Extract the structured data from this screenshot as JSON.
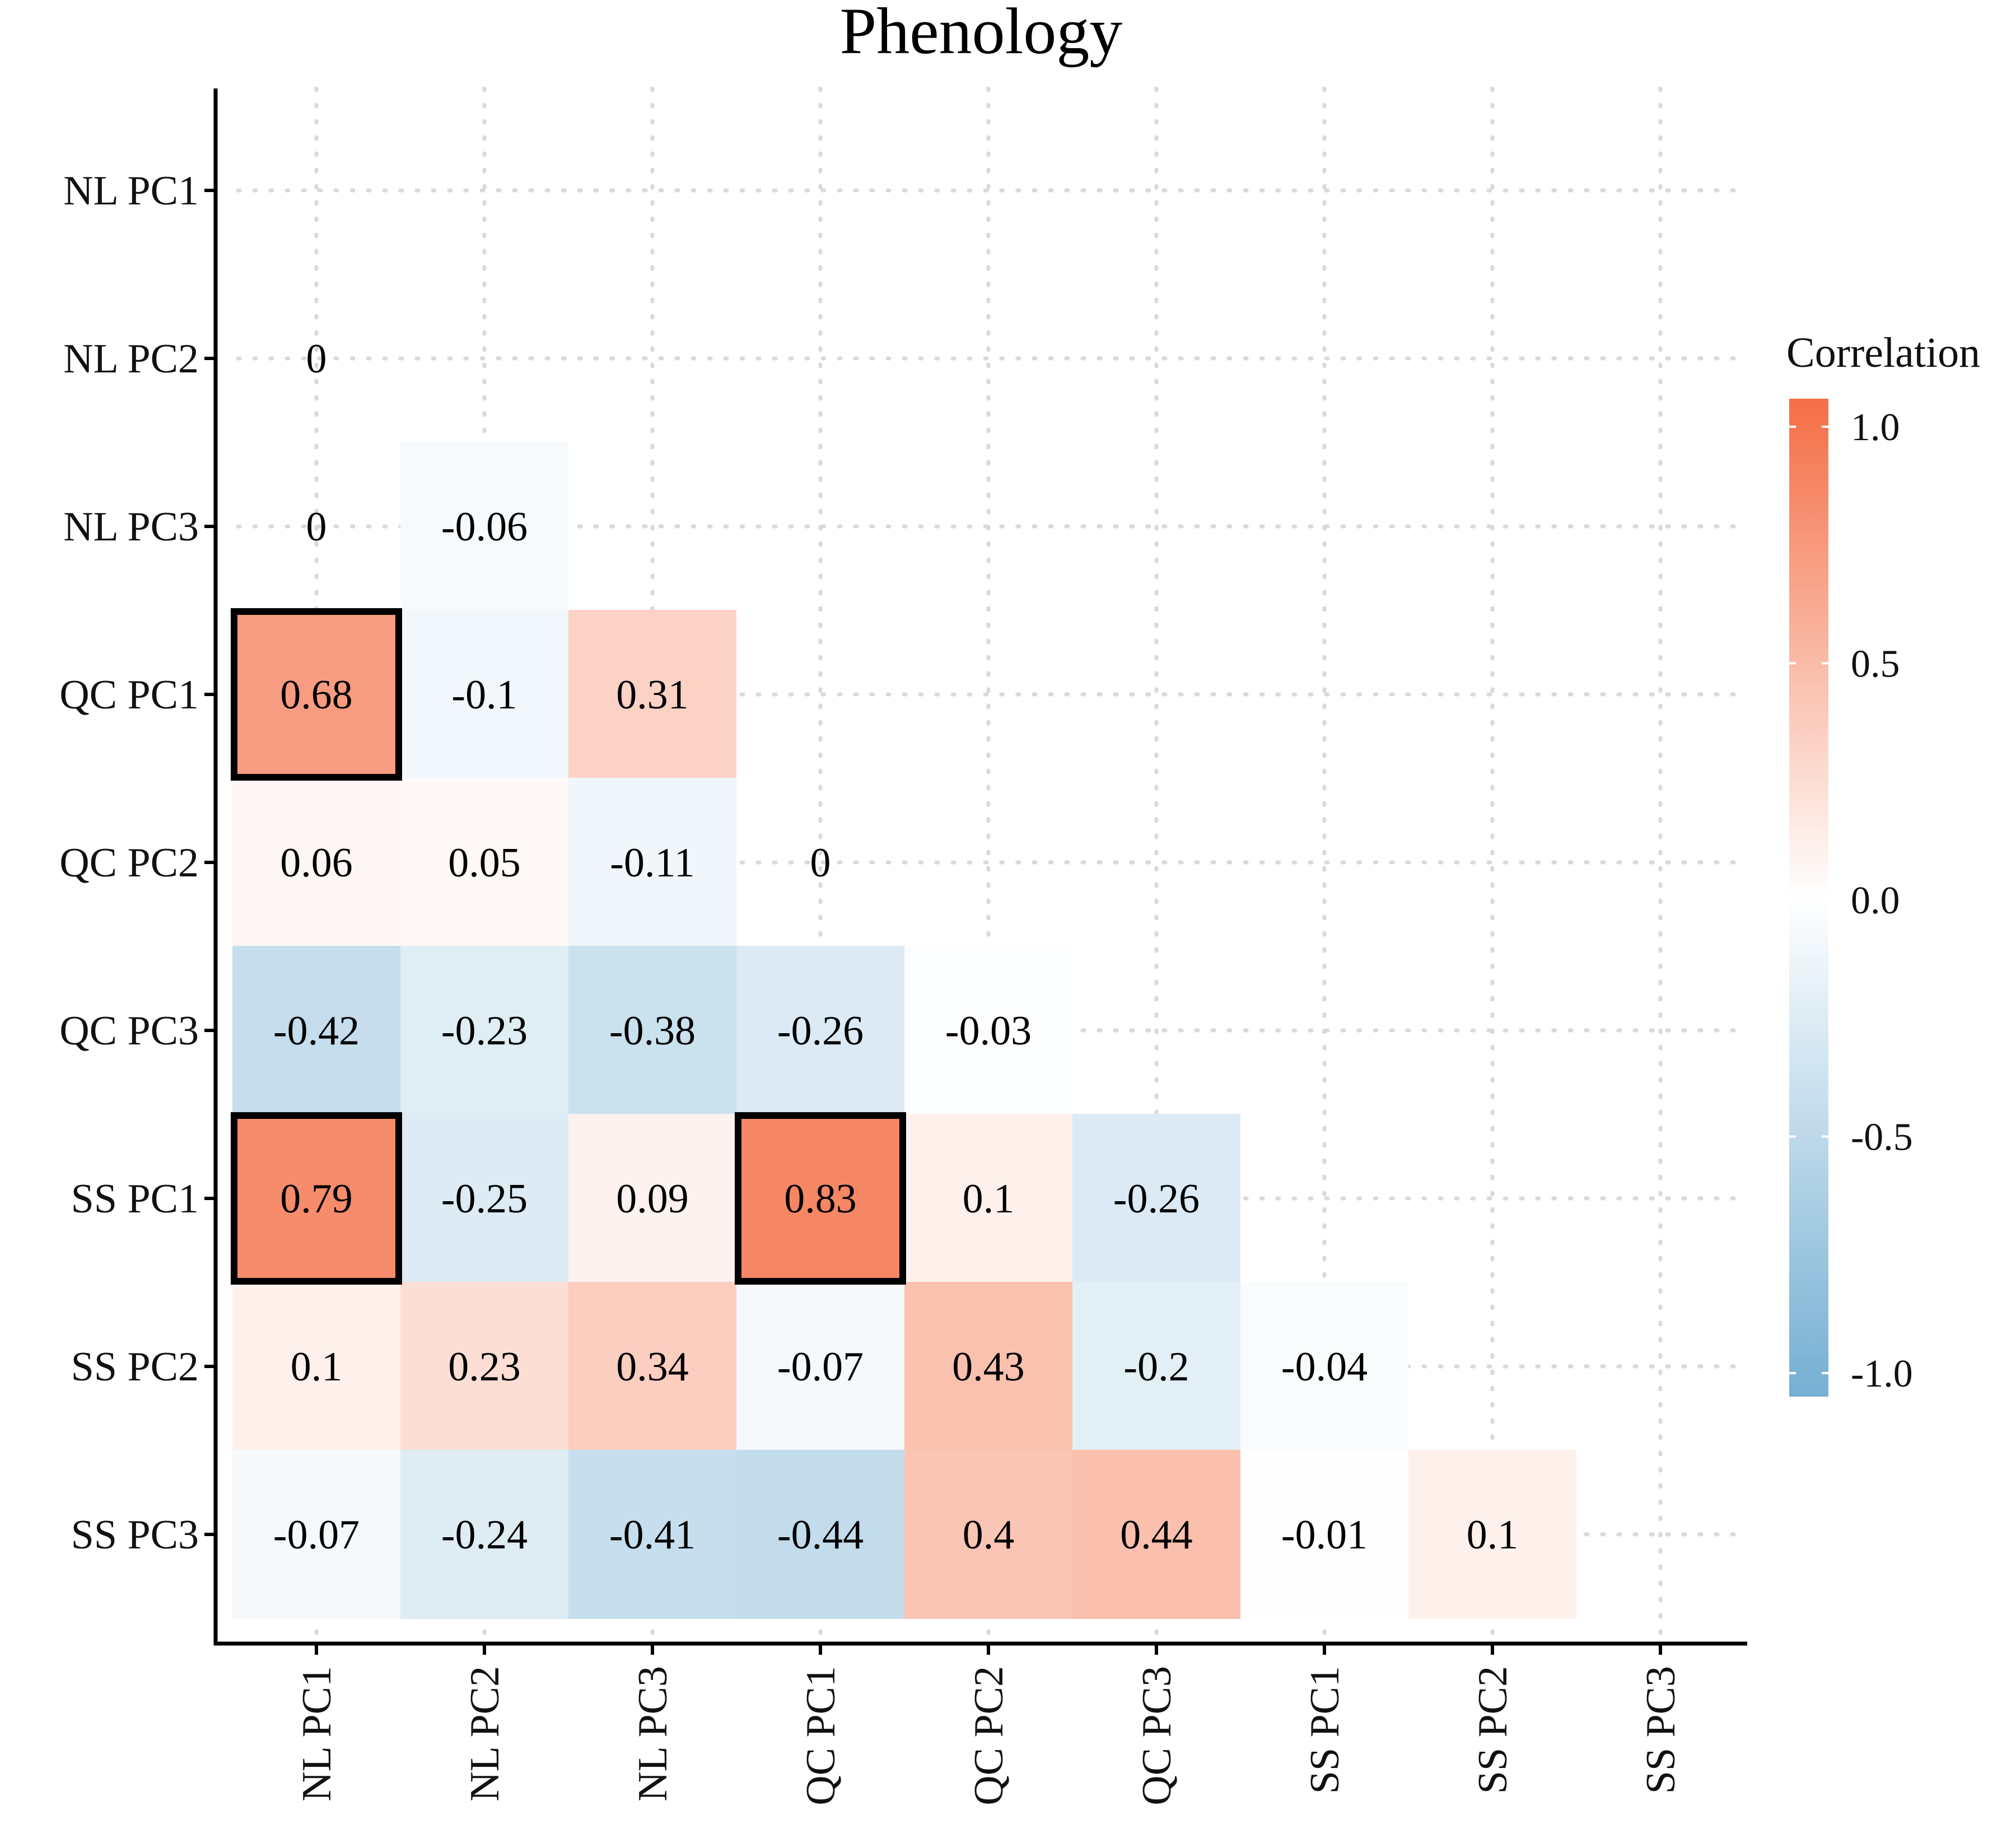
{
  "chart_data": {
    "type": "heatmap",
    "title": "Phenology",
    "xlabel": "",
    "ylabel": "",
    "variables": [
      "NL PC1",
      "NL PC2",
      "NL PC3",
      "QC PC1",
      "QC PC2",
      "QC PC3",
      "SS PC1",
      "SS PC2",
      "SS PC3"
    ],
    "matrix_shape": "lower-triangle",
    "grid": true,
    "cells": [
      {
        "row": "NL PC2",
        "col": "NL PC1",
        "value": 0,
        "label": "0",
        "show_fill": false
      },
      {
        "row": "NL PC3",
        "col": "NL PC1",
        "value": 0,
        "label": "0",
        "show_fill": false
      },
      {
        "row": "NL PC3",
        "col": "NL PC2",
        "value": -0.06,
        "label": "-0.06",
        "show_fill": true
      },
      {
        "row": "QC PC1",
        "col": "NL PC1",
        "value": 0.68,
        "label": "0.68",
        "show_fill": true,
        "highlight": true
      },
      {
        "row": "QC PC1",
        "col": "NL PC2",
        "value": -0.1,
        "label": "-0.1",
        "show_fill": true
      },
      {
        "row": "QC PC1",
        "col": "NL PC3",
        "value": 0.31,
        "label": "0.31",
        "show_fill": true
      },
      {
        "row": "QC PC2",
        "col": "NL PC1",
        "value": 0.06,
        "label": "0.06",
        "show_fill": true
      },
      {
        "row": "QC PC2",
        "col": "NL PC2",
        "value": 0.05,
        "label": "0.05",
        "show_fill": true
      },
      {
        "row": "QC PC2",
        "col": "NL PC3",
        "value": -0.11,
        "label": "-0.11",
        "show_fill": true
      },
      {
        "row": "QC PC2",
        "col": "QC PC1",
        "value": 0,
        "label": "0",
        "show_fill": false
      },
      {
        "row": "QC PC3",
        "col": "NL PC1",
        "value": -0.42,
        "label": "-0.42",
        "show_fill": true
      },
      {
        "row": "QC PC3",
        "col": "NL PC2",
        "value": -0.23,
        "label": "-0.23",
        "show_fill": true
      },
      {
        "row": "QC PC3",
        "col": "NL PC3",
        "value": -0.38,
        "label": "-0.38",
        "show_fill": true
      },
      {
        "row": "QC PC3",
        "col": "QC PC1",
        "value": -0.26,
        "label": "-0.26",
        "show_fill": true
      },
      {
        "row": "QC PC3",
        "col": "QC PC2",
        "value": -0.03,
        "label": "-0.03",
        "show_fill": true
      },
      {
        "row": "SS PC1",
        "col": "NL PC1",
        "value": 0.79,
        "label": "0.79",
        "show_fill": true,
        "highlight": true
      },
      {
        "row": "SS PC1",
        "col": "NL PC2",
        "value": -0.25,
        "label": "-0.25",
        "show_fill": true
      },
      {
        "row": "SS PC1",
        "col": "NL PC3",
        "value": 0.09,
        "label": "0.09",
        "show_fill": true
      },
      {
        "row": "SS PC1",
        "col": "QC PC1",
        "value": 0.83,
        "label": "0.83",
        "show_fill": true,
        "highlight": true
      },
      {
        "row": "SS PC1",
        "col": "QC PC2",
        "value": 0.1,
        "label": "0.1",
        "show_fill": true
      },
      {
        "row": "SS PC1",
        "col": "QC PC3",
        "value": -0.26,
        "label": "-0.26",
        "show_fill": true
      },
      {
        "row": "SS PC2",
        "col": "NL PC1",
        "value": 0.1,
        "label": "0.1",
        "show_fill": true
      },
      {
        "row": "SS PC2",
        "col": "NL PC2",
        "value": 0.23,
        "label": "0.23",
        "show_fill": true
      },
      {
        "row": "SS PC2",
        "col": "NL PC3",
        "value": 0.34,
        "label": "0.34",
        "show_fill": true
      },
      {
        "row": "SS PC2",
        "col": "QC PC1",
        "value": -0.07,
        "label": "-0.07",
        "show_fill": true
      },
      {
        "row": "SS PC2",
        "col": "QC PC2",
        "value": 0.43,
        "label": "0.43",
        "show_fill": true
      },
      {
        "row": "SS PC2",
        "col": "QC PC3",
        "value": -0.2,
        "label": "-0.2",
        "show_fill": true
      },
      {
        "row": "SS PC2",
        "col": "SS PC1",
        "value": -0.04,
        "label": "-0.04",
        "show_fill": true
      },
      {
        "row": "SS PC3",
        "col": "NL PC1",
        "value": -0.07,
        "label": "-0.07",
        "show_fill": true
      },
      {
        "row": "SS PC3",
        "col": "NL PC2",
        "value": -0.24,
        "label": "-0.24",
        "show_fill": true
      },
      {
        "row": "SS PC3",
        "col": "NL PC3",
        "value": -0.41,
        "label": "-0.41",
        "show_fill": true
      },
      {
        "row": "SS PC3",
        "col": "QC PC1",
        "value": -0.44,
        "label": "-0.44",
        "show_fill": true
      },
      {
        "row": "SS PC3",
        "col": "QC PC2",
        "value": 0.4,
        "label": "0.4",
        "show_fill": true
      },
      {
        "row": "SS PC3",
        "col": "QC PC3",
        "value": 0.44,
        "label": "0.44",
        "show_fill": true
      },
      {
        "row": "SS PC3",
        "col": "SS PC1",
        "value": -0.01,
        "label": "-0.01",
        "show_fill": true
      },
      {
        "row": "SS PC3",
        "col": "SS PC2",
        "value": 0.1,
        "label": "0.1",
        "show_fill": true
      }
    ],
    "legend": {
      "title": "Correlation",
      "position": "right",
      "range": [
        -1.0,
        1.0
      ],
      "ticks": [
        1.0,
        0.5,
        0.0,
        -0.5,
        -1.0
      ],
      "tick_labels": [
        "1.0",
        "0.5",
        "0.0",
        "-0.5",
        "-1.0"
      ]
    },
    "colors": {
      "low": "#74afd3",
      "mid": "#ffffff",
      "high": "#f46e45",
      "highlight_border": "#000000",
      "grid": "#d9d9d9",
      "axis": "#000000"
    }
  }
}
